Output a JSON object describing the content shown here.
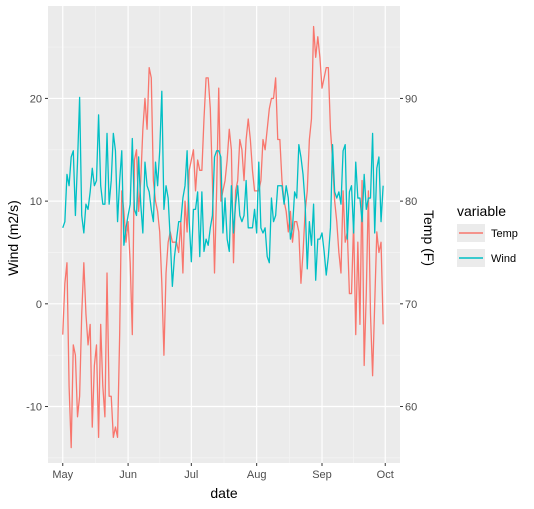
{
  "chart_data": {
    "type": "line",
    "title": "",
    "xlabel": "date",
    "ylabel_left": "Wind (m2/s)",
    "ylabel_right": "Temp (F)",
    "x": [
      "1973-05-01",
      "1973-05-02",
      "1973-05-03",
      "1973-05-04",
      "1973-05-05",
      "1973-05-06",
      "1973-05-07",
      "1973-05-08",
      "1973-05-09",
      "1973-05-10",
      "1973-05-11",
      "1973-05-12",
      "1973-05-13",
      "1973-05-14",
      "1973-05-15",
      "1973-05-16",
      "1973-05-17",
      "1973-05-18",
      "1973-05-19",
      "1973-05-20",
      "1973-05-21",
      "1973-05-22",
      "1973-05-23",
      "1973-05-24",
      "1973-05-25",
      "1973-05-26",
      "1973-05-27",
      "1973-05-28",
      "1973-05-29",
      "1973-05-30",
      "1973-05-31",
      "1973-06-01",
      "1973-06-02",
      "1973-06-03",
      "1973-06-04",
      "1973-06-05",
      "1973-06-06",
      "1973-06-07",
      "1973-06-08",
      "1973-06-09",
      "1973-06-10",
      "1973-06-11",
      "1973-06-12",
      "1973-06-13",
      "1973-06-14",
      "1973-06-15",
      "1973-06-16",
      "1973-06-17",
      "1973-06-18",
      "1973-06-19",
      "1973-06-20",
      "1973-06-21",
      "1973-06-22",
      "1973-06-23",
      "1973-06-24",
      "1973-06-25",
      "1973-06-26",
      "1973-06-27",
      "1973-06-28",
      "1973-06-29",
      "1973-06-30",
      "1973-07-01",
      "1973-07-02",
      "1973-07-03",
      "1973-07-04",
      "1973-07-05",
      "1973-07-06",
      "1973-07-07",
      "1973-07-08",
      "1973-07-09",
      "1973-07-10",
      "1973-07-11",
      "1973-07-12",
      "1973-07-13",
      "1973-07-14",
      "1973-07-15",
      "1973-07-16",
      "1973-07-17",
      "1973-07-18",
      "1973-07-19",
      "1973-07-20",
      "1973-07-21",
      "1973-07-22",
      "1973-07-23",
      "1973-07-24",
      "1973-07-25",
      "1973-07-26",
      "1973-07-27",
      "1973-07-28",
      "1973-07-29",
      "1973-07-30",
      "1973-07-31",
      "1973-08-01",
      "1973-08-02",
      "1973-08-03",
      "1973-08-04",
      "1973-08-05",
      "1973-08-06",
      "1973-08-07",
      "1973-08-08",
      "1973-08-09",
      "1973-08-10",
      "1973-08-11",
      "1973-08-12",
      "1973-08-13",
      "1973-08-14",
      "1973-08-15",
      "1973-08-16",
      "1973-08-17",
      "1973-08-18",
      "1973-08-19",
      "1973-08-20",
      "1973-08-21",
      "1973-08-22",
      "1973-08-23",
      "1973-08-24",
      "1973-08-25",
      "1973-08-26",
      "1973-08-27",
      "1973-08-28",
      "1973-08-29",
      "1973-08-30",
      "1973-08-31",
      "1973-09-01",
      "1973-09-02",
      "1973-09-03",
      "1973-09-04",
      "1973-09-05",
      "1973-09-06",
      "1973-09-07",
      "1973-09-08",
      "1973-09-09",
      "1973-09-10",
      "1973-09-11",
      "1973-09-12",
      "1973-09-13",
      "1973-09-14",
      "1973-09-15",
      "1973-09-16",
      "1973-09-17",
      "1973-09-18",
      "1973-09-19",
      "1973-09-20",
      "1973-09-21",
      "1973-09-22",
      "1973-09-23",
      "1973-09-24",
      "1973-09-25",
      "1973-09-26",
      "1973-09-27",
      "1973-09-28",
      "1973-09-29",
      "1973-09-30"
    ],
    "series": [
      {
        "name": "Temp",
        "axis": "right",
        "values": [
          67,
          72,
          74,
          62,
          56,
          66,
          65,
          59,
          61,
          69,
          74,
          69,
          66,
          68,
          58,
          64,
          66,
          57,
          68,
          62,
          59,
          73,
          61,
          61,
          57,
          58,
          57,
          67,
          81,
          79,
          76,
          78,
          74,
          67,
          84,
          85,
          79,
          82,
          87,
          90,
          87,
          93,
          92,
          82,
          80,
          79,
          77,
          72,
          65,
          73,
          76,
          77,
          76,
          76,
          76,
          75,
          78,
          73,
          80,
          77,
          83,
          84,
          85,
          81,
          84,
          83,
          83,
          88,
          92,
          92,
          89,
          82,
          73,
          81,
          91,
          80,
          81,
          82,
          84,
          87,
          85,
          74,
          81,
          82,
          86,
          85,
          82,
          86,
          88,
          86,
          83,
          81,
          81,
          81,
          82,
          86,
          85,
          87,
          89,
          90,
          90,
          92,
          86,
          86,
          82,
          80,
          79,
          77,
          79,
          76,
          78,
          78,
          77,
          72,
          75,
          79,
          81,
          86,
          88,
          97,
          94,
          96,
          94,
          91,
          92,
          93,
          93,
          87,
          84,
          80,
          78,
          75,
          73,
          81,
          76,
          77,
          71,
          71,
          78,
          67,
          76,
          68,
          82,
          64,
          71,
          81,
          69,
          63,
          70,
          77,
          75,
          76,
          68
        ]
      },
      {
        "name": "Wind",
        "axis": "left",
        "values": [
          7.4,
          8.0,
          12.6,
          11.5,
          14.3,
          14.9,
          8.6,
          13.8,
          20.1,
          8.6,
          6.9,
          9.7,
          9.2,
          10.9,
          13.2,
          11.5,
          12.0,
          18.4,
          11.5,
          9.7,
          9.7,
          16.6,
          9.7,
          12.0,
          16.6,
          14.9,
          8.0,
          12.0,
          14.9,
          5.7,
          7.4,
          8.6,
          9.7,
          16.1,
          9.2,
          8.6,
          14.3,
          9.7,
          6.9,
          13.8,
          11.5,
          10.9,
          9.2,
          8.0,
          13.8,
          11.5,
          14.9,
          20.7,
          9.2,
          11.5,
          10.3,
          6.3,
          1.7,
          4.6,
          6.3,
          8.0,
          8.0,
          10.3,
          11.5,
          14.9,
          8.0,
          4.1,
          9.2,
          9.2,
          10.9,
          4.6,
          10.9,
          5.1,
          6.3,
          5.7,
          7.4,
          8.6,
          14.3,
          14.9,
          14.9,
          14.3,
          6.9,
          10.3,
          6.3,
          5.1,
          11.5,
          6.9,
          9.7,
          11.5,
          8.6,
          8.0,
          8.6,
          12.0,
          7.4,
          7.4,
          7.4,
          9.2,
          6.9,
          13.8,
          7.4,
          6.9,
          7.4,
          4.6,
          4.0,
          10.3,
          8.0,
          8.6,
          11.5,
          11.5,
          11.5,
          9.7,
          11.5,
          10.3,
          6.3,
          7.4,
          10.9,
          10.3,
          15.5,
          14.3,
          12.6,
          9.7,
          3.4,
          8.0,
          5.7,
          9.7,
          2.3,
          6.3,
          6.3,
          6.9,
          5.1,
          2.8,
          4.6,
          7.4,
          15.5,
          10.9,
          10.3,
          10.9,
          9.7,
          14.9,
          15.5,
          6.3,
          10.9,
          11.5,
          6.9,
          13.8,
          10.3,
          10.3,
          8.0,
          12.6,
          9.2,
          10.3,
          10.3,
          16.6,
          6.9,
          13.2,
          14.3,
          8.0,
          11.5
        ]
      }
    ],
    "ylim_left": [
      -15.5,
      29.0
    ],
    "ylim_right": [
      54.5,
      99.0
    ],
    "y_ticks_left": [
      -10,
      0,
      10,
      20
    ],
    "y_ticks_right": [
      60,
      70,
      80,
      90
    ],
    "x_ticks": [
      {
        "date": "1973-05-01",
        "label": "May"
      },
      {
        "date": "1973-06-01",
        "label": "Jun"
      },
      {
        "date": "1973-07-01",
        "label": "Jul"
      },
      {
        "date": "1973-08-01",
        "label": "Aug"
      },
      {
        "date": "1973-09-01",
        "label": "Sep"
      },
      {
        "date": "1973-10-01",
        "label": "Oct"
      }
    ],
    "xlim": [
      "1973-04-24",
      "1973-10-08"
    ],
    "grid": true,
    "legend": {
      "title": "variable",
      "placement": "right",
      "items": [
        {
          "label": "Temp",
          "color": "#F8766D"
        },
        {
          "label": "Wind",
          "color": "#00BFC4"
        }
      ]
    },
    "colors": {
      "panel": "#EBEBEB",
      "grid_major": "#FFFFFF",
      "grid_minor": "#F4F4F4"
    }
  }
}
